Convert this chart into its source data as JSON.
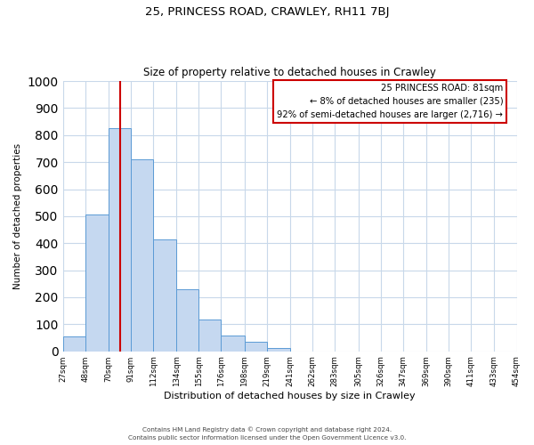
{
  "title1": "25, PRINCESS ROAD, CRAWLEY, RH11 7BJ",
  "title2": "Size of property relative to detached houses in Crawley",
  "xlabel": "Distribution of detached houses by size in Crawley",
  "ylabel": "Number of detached properties",
  "bin_edges": [
    27,
    48,
    70,
    91,
    112,
    134,
    155,
    176,
    198,
    219,
    241,
    262,
    283,
    305,
    326,
    347,
    369,
    390,
    411,
    433,
    454
  ],
  "bar_heights": [
    55,
    505,
    825,
    710,
    415,
    230,
    117,
    57,
    35,
    12,
    0,
    0,
    0,
    0,
    0,
    0,
    0,
    0,
    0,
    0
  ],
  "bar_color": "#c5d8f0",
  "bar_edge_color": "#5b9bd5",
  "xtick_labels": [
    "27sqm",
    "48sqm",
    "70sqm",
    "91sqm",
    "112sqm",
    "134sqm",
    "155sqm",
    "176sqm",
    "198sqm",
    "219sqm",
    "241sqm",
    "262sqm",
    "283sqm",
    "305sqm",
    "326sqm",
    "347sqm",
    "369sqm",
    "390sqm",
    "411sqm",
    "433sqm",
    "454sqm"
  ],
  "ylim": [
    0,
    1000
  ],
  "yticks": [
    0,
    100,
    200,
    300,
    400,
    500,
    600,
    700,
    800,
    900,
    1000
  ],
  "property_line_x": 81,
  "property_line_color": "#cc0000",
  "annotation_title": "25 PRINCESS ROAD: 81sqm",
  "annotation_line1": "← 8% of detached houses are smaller (235)",
  "annotation_line2": "92% of semi-detached houses are larger (2,716) →",
  "annotation_box_color": "#ffffff",
  "annotation_box_edge": "#cc0000",
  "footer1": "Contains HM Land Registry data © Crown copyright and database right 2024.",
  "footer2": "Contains public sector information licensed under the Open Government Licence v3.0.",
  "bg_color": "#ffffff",
  "grid_color": "#c8d8ea"
}
